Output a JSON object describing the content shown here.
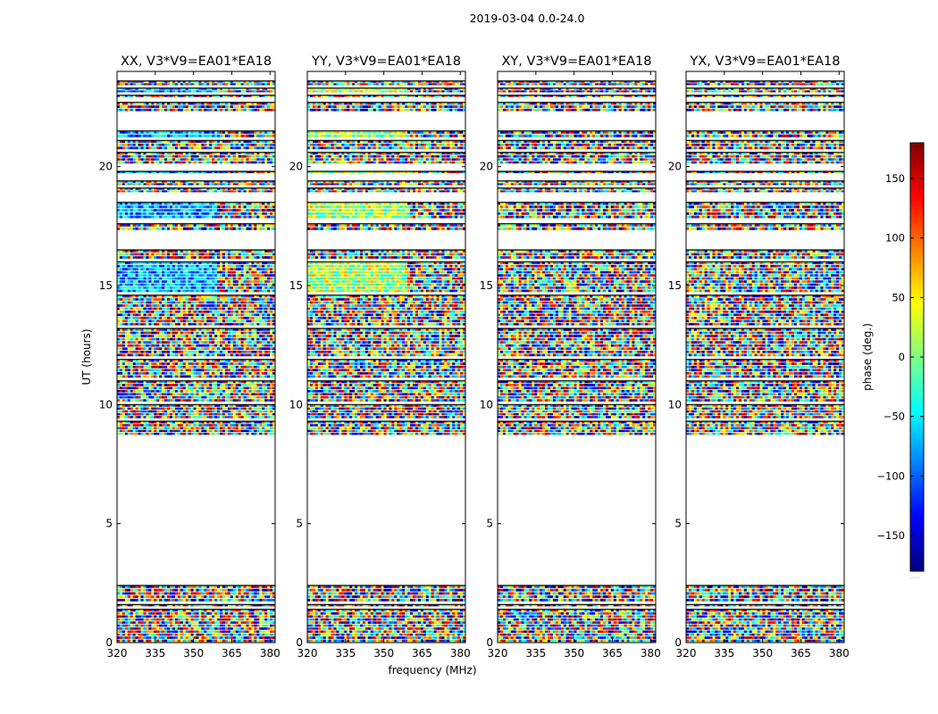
{
  "figure": {
    "suptitle": "2019-03-04 0.0-24.0"
  },
  "chart_data": {
    "type": "heatmap",
    "title": "2019-03-04 0.0-24.0",
    "xlabel": "frequency (MHz)",
    "ylabel": "UT (hours)",
    "xlim": [
      320,
      382
    ],
    "ylim": [
      0,
      24
    ],
    "xticks": [
      320,
      335,
      350,
      365,
      380
    ],
    "yticks": [
      0,
      5,
      10,
      15,
      20
    ],
    "panels": [
      {
        "title": "XX, V3*V9=EA01*EA18",
        "pol": "XX"
      },
      {
        "title": "YY, V3*V9=EA01*EA18",
        "pol": "YY"
      },
      {
        "title": "XY, V3*V9=EA01*EA18",
        "pol": "XY"
      },
      {
        "title": "YX, V3*V9=EA01*EA18",
        "pol": "YX"
      }
    ],
    "data_bands_hours": [
      [
        0.0,
        1.4
      ],
      [
        1.5,
        1.6
      ],
      [
        1.7,
        2.4
      ],
      [
        8.7,
        9.3
      ],
      [
        9.4,
        10.0
      ],
      [
        10.1,
        11.0
      ],
      [
        11.1,
        11.9
      ],
      [
        12.0,
        13.2
      ],
      [
        13.3,
        14.6
      ],
      [
        14.7,
        16.0
      ],
      [
        16.1,
        16.5
      ],
      [
        17.3,
        17.6
      ],
      [
        17.8,
        18.5
      ],
      [
        18.9,
        19.1
      ],
      [
        19.2,
        19.4
      ],
      [
        19.7,
        19.8
      ],
      [
        20.1,
        20.6
      ],
      [
        20.7,
        21.1
      ],
      [
        21.2,
        21.5
      ],
      [
        22.3,
        22.7
      ],
      [
        22.9,
        23.0
      ],
      [
        23.1,
        23.3
      ],
      [
        23.4,
        23.6
      ]
    ],
    "colorbar": {
      "label": "phase (deg.)",
      "range": [
        -180,
        180
      ],
      "ticks": [
        -150,
        -100,
        -50,
        0,
        50,
        100,
        150
      ],
      "colormap": "jet",
      "note": "......"
    }
  }
}
